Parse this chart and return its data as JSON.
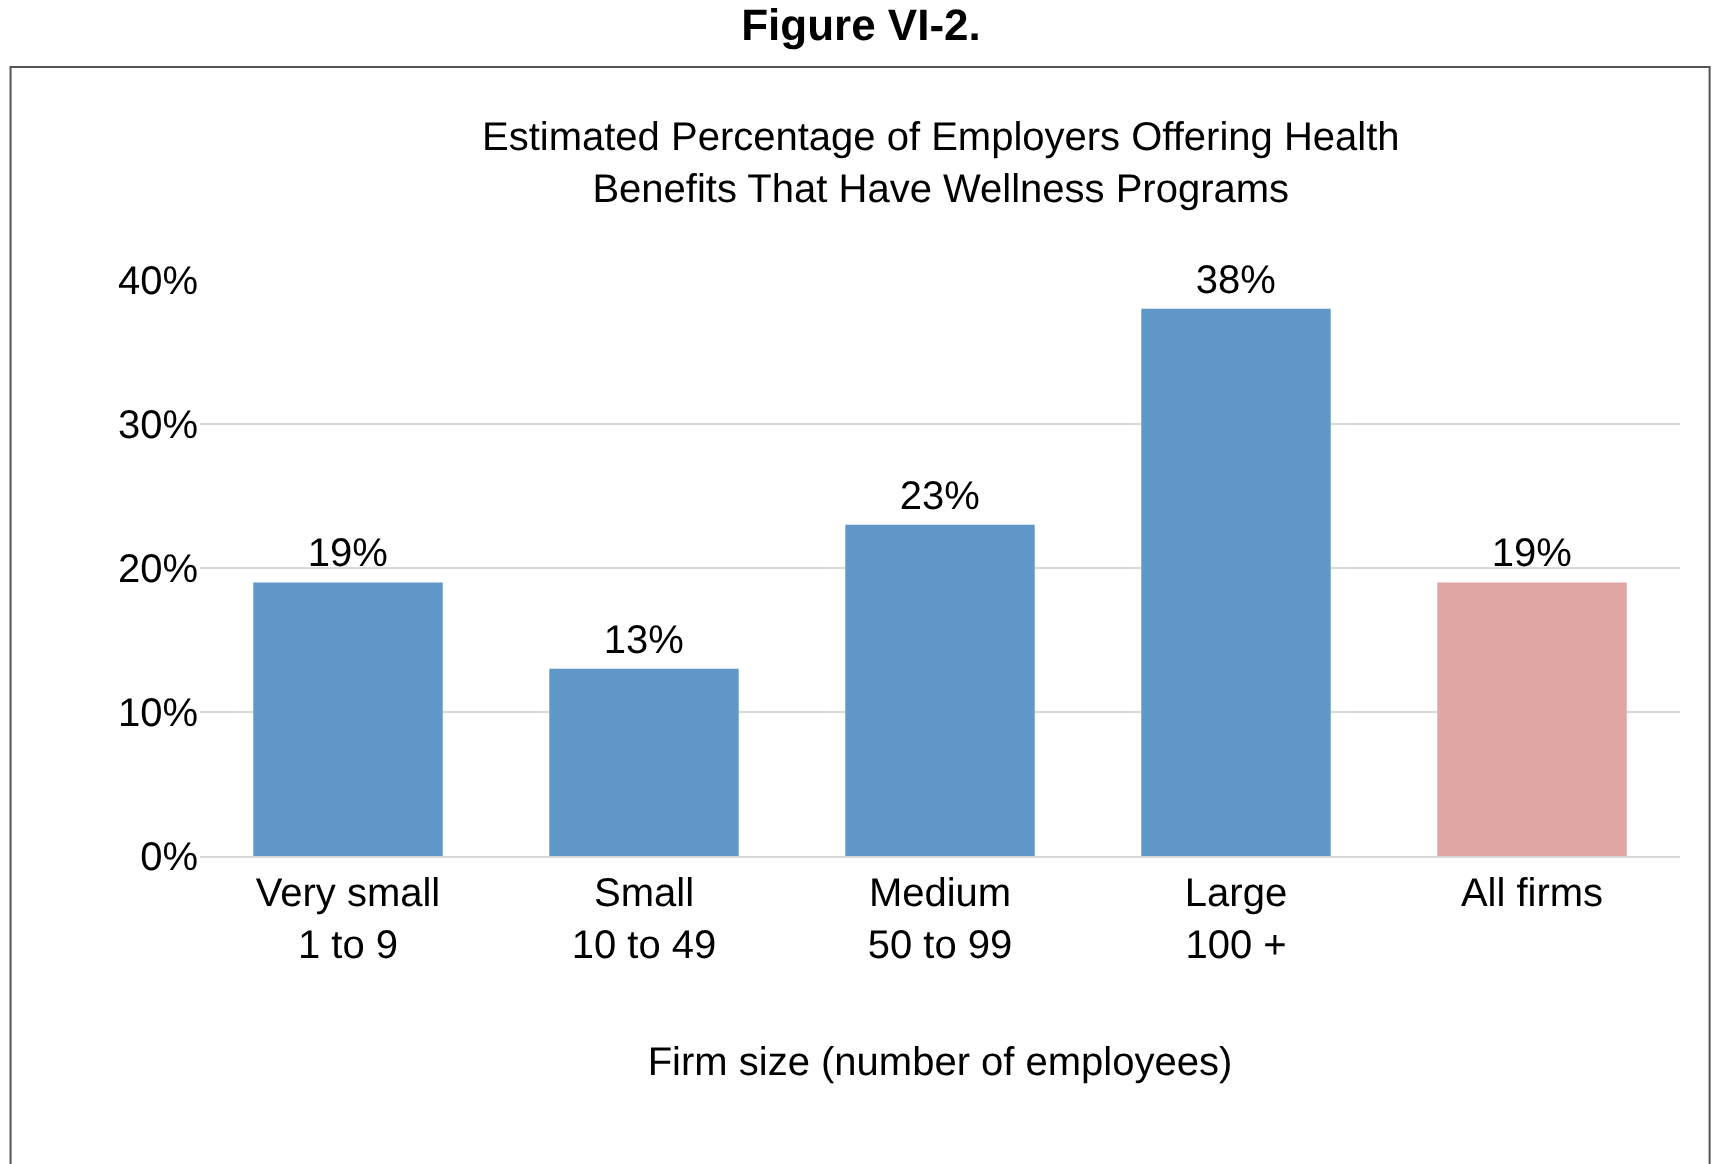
{
  "chart_data": {
    "type": "bar",
    "title": "Figure VI-2.",
    "subtitle": "Estimated Percentage of Employers Offering Health\nBenefits That Have Wellness Programs",
    "xlabel": "Firm size (number of employees)",
    "categories": [
      "Very small\n1 to 9",
      "Small\n10 to 49",
      "Medium\n50 to 99",
      "Large\n100 +",
      "All firms"
    ],
    "values": [
      19,
      13,
      23,
      38,
      19
    ],
    "colors": [
      "#6097c9",
      "#6097c9",
      "#6097c9",
      "#6097c9",
      "#e0a6a4"
    ],
    "value_labels": [
      "19%",
      "13%",
      "23%",
      "38%",
      "19%"
    ],
    "ylim": [
      0,
      40
    ],
    "yticks": [
      {
        "value": 0,
        "label": "0%"
      },
      {
        "value": 10,
        "label": "10%"
      },
      {
        "value": 20,
        "label": "20%"
      },
      {
        "value": 30,
        "label": "30%"
      },
      {
        "value": 40,
        "label": "40%"
      }
    ],
    "grid": "y"
  }
}
